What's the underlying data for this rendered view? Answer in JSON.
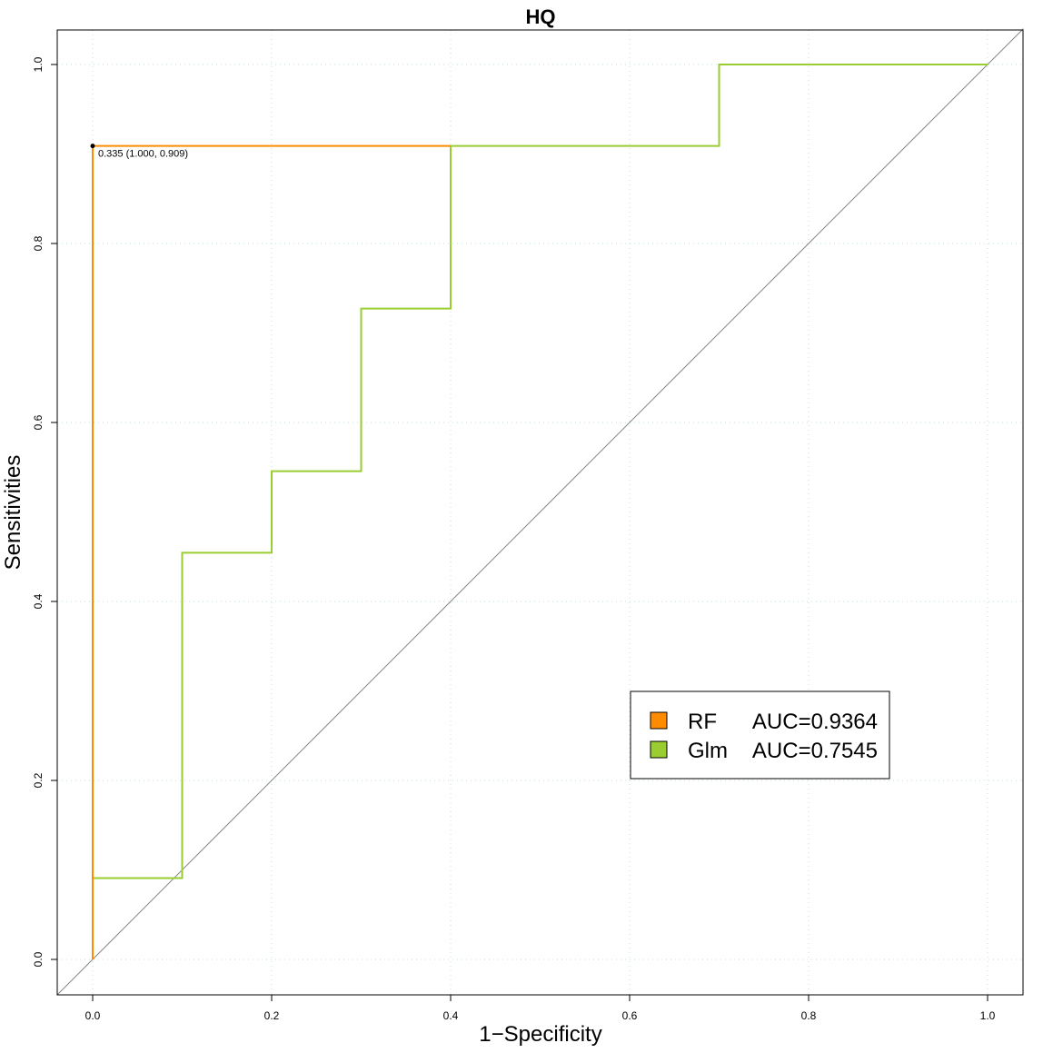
{
  "chart_data": {
    "type": "line",
    "title": "HQ",
    "xlabel": "1−Specificity",
    "ylabel": "Sensitivities",
    "xlim": [
      -0.04,
      1.04
    ],
    "ylim": [
      -0.04,
      1.04
    ],
    "x_ticks": [
      "0.0",
      "0.2",
      "0.4",
      "0.6",
      "0.8",
      "1.0"
    ],
    "y_ticks": [
      "0.0",
      "0.2",
      "0.4",
      "0.6",
      "0.8",
      "1.0"
    ],
    "grid": true,
    "diagonal_reference": true,
    "legend_placement": "bottom-right",
    "series": [
      {
        "name": "RF",
        "auc_label": "AUC=0.9364",
        "color": "#FF8C00",
        "x": [
          0,
          0,
          0.1,
          0.4
        ],
        "y": [
          0,
          0.909,
          0.909,
          0.909
        ]
      },
      {
        "name": "Glm",
        "auc_label": "AUC=0.7545",
        "color": "#9ACD32",
        "x": [
          0,
          0,
          0.1,
          0.1,
          0.2,
          0.2,
          0.3,
          0.3,
          0.4,
          0.4,
          0.7,
          0.7,
          1.0
        ],
        "y": [
          0,
          0.0909,
          0.0909,
          0.4545,
          0.4545,
          0.5455,
          0.5455,
          0.7273,
          0.7273,
          0.909,
          0.909,
          1.0,
          1.0
        ]
      }
    ],
    "annotations": [
      {
        "x": 0,
        "y": 0.909,
        "text": "0.335 (1.000, 0.909)"
      }
    ]
  }
}
